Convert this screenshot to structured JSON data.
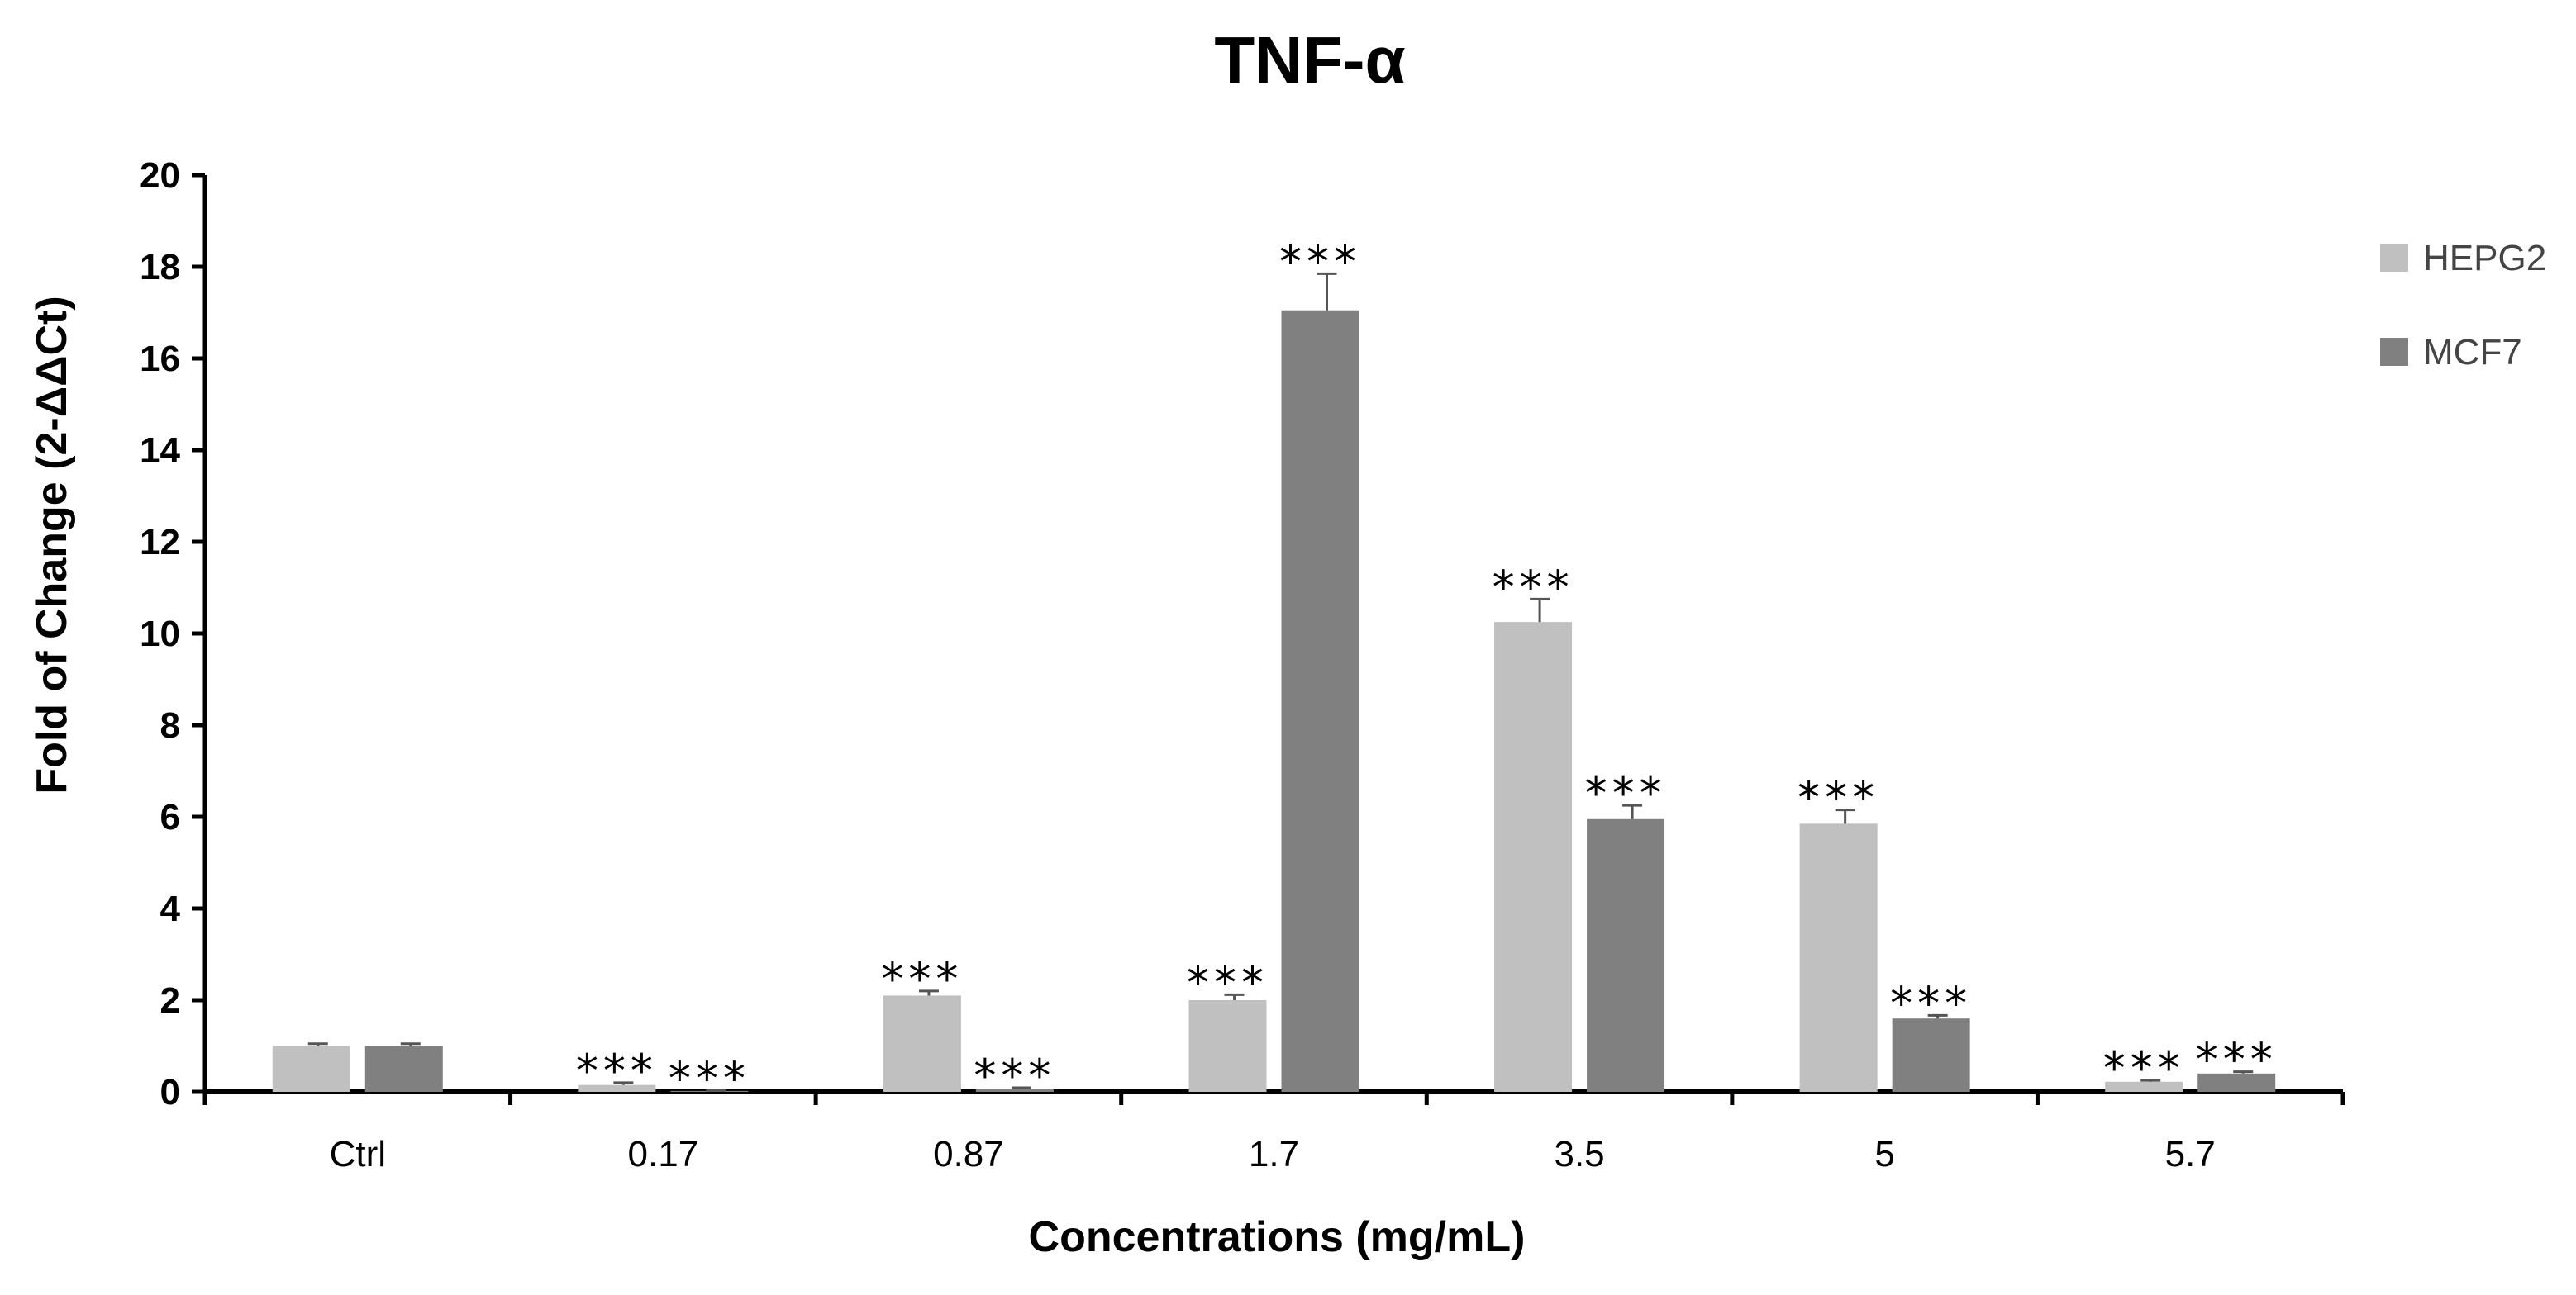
{
  "chart_data": {
    "type": "bar",
    "title": "TNF-α",
    "xlabel": "Concentrations (mg/mL)",
    "ylabel": "Fold of Change (2-ΔΔCt)",
    "ylim": [
      0,
      20
    ],
    "yticks": [
      0,
      2,
      4,
      6,
      8,
      10,
      12,
      14,
      16,
      18,
      20
    ],
    "categories": [
      "Ctrl",
      "0.17",
      "0.87",
      "1.7",
      "3.5",
      "5",
      "5.7"
    ],
    "grid": false,
    "legend_position": "top-right",
    "series": [
      {
        "name": "HEPG2",
        "color": "#c0c0c0",
        "values": [
          1.0,
          0.15,
          2.1,
          2.0,
          10.25,
          5.85,
          0.22
        ],
        "errors": [
          0.05,
          0.05,
          0.1,
          0.12,
          0.5,
          0.3,
          0.03
        ],
        "annotations": [
          "",
          "***",
          "***",
          "***",
          "***",
          "***",
          "***"
        ]
      },
      {
        "name": "MCF7",
        "color": "#808080",
        "values": [
          1.0,
          0.02,
          0.07,
          17.05,
          5.95,
          1.6,
          0.4
        ],
        "errors": [
          0.05,
          0.01,
          0.02,
          0.8,
          0.3,
          0.07,
          0.04
        ],
        "annotations": [
          "",
          "***",
          "***",
          "***",
          "***",
          "***",
          "***"
        ]
      }
    ]
  }
}
